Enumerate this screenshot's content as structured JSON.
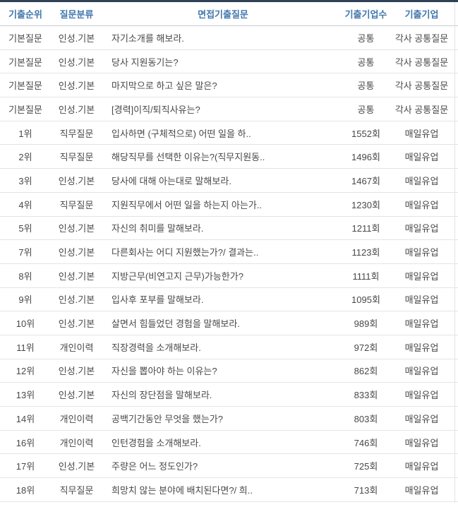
{
  "theme": {
    "c-top-border": "#2e4156",
    "c-header-text": "#4177ac",
    "c-header-border": "#c9cdd3",
    "c-row-border": "#e4e4e4",
    "c-body-text": "#484848",
    "c-bg": "#ffffff",
    "c-vline": "#e3e3e3"
  },
  "table": {
    "columns": [
      {
        "key": "rank",
        "label": "기출순위"
      },
      {
        "key": "category",
        "label": "질문분류"
      },
      {
        "key": "question",
        "label": "면접기출질문"
      },
      {
        "key": "count",
        "label": "기출기업수"
      },
      {
        "key": "company",
        "label": "기출기업"
      }
    ],
    "rows": [
      {
        "rank": "기본질문",
        "category": "인성.기본",
        "question": "자기소개를 해보라.",
        "count": "공통",
        "company": "각사 공통질문"
      },
      {
        "rank": "기본질문",
        "category": "인성.기본",
        "question": "당사 지원동기는?",
        "count": "공통",
        "company": "각사 공통질문"
      },
      {
        "rank": "기본질문",
        "category": "인성.기본",
        "question": "마지막으로 하고 싶은 말은?",
        "count": "공통",
        "company": "각사 공통질문"
      },
      {
        "rank": "기본질문",
        "category": "인성.기본",
        "question": "[경력]이직/퇴직사유는?",
        "count": "공통",
        "company": "각사 공통질문"
      },
      {
        "rank": "1위",
        "category": "직무질문",
        "question": "입사하면 (구체적으로) 어떤 일을 하..",
        "count": "1552회",
        "company": "매일유업"
      },
      {
        "rank": "2위",
        "category": "직무질문",
        "question": "해당직무를 선택한 이유는?(직무지원동..",
        "count": "1496회",
        "company": "매일유업"
      },
      {
        "rank": "3위",
        "category": "인성.기본",
        "question": "당사에 대해 아는대로 말해보라.",
        "count": "1467회",
        "company": "매일유업"
      },
      {
        "rank": "4위",
        "category": "직무질문",
        "question": "지원직무에서 어떤 일을 하는지 아는가..",
        "count": "1230회",
        "company": "매일유업"
      },
      {
        "rank": "5위",
        "category": "인성.기본",
        "question": "자신의 취미를 말해보라.",
        "count": "1211회",
        "company": "매일유업"
      },
      {
        "rank": "7위",
        "category": "인성.기본",
        "question": "다른회사는 어디 지원했는가?/ 결과는..",
        "count": "1123회",
        "company": "매일유업"
      },
      {
        "rank": "8위",
        "category": "인성.기본",
        "question": "지방근무(비연고지 근무)가능한가?",
        "count": "1111회",
        "company": "매일유업"
      },
      {
        "rank": "9위",
        "category": "인성.기본",
        "question": "입사후 포부를 말해보라.",
        "count": "1095회",
        "company": "매일유업"
      },
      {
        "rank": "10위",
        "category": "인성.기본",
        "question": "살면서 힘들었던 경험을 말해보라.",
        "count": "989회",
        "company": "매일유업"
      },
      {
        "rank": "11위",
        "category": "개인이력",
        "question": "직장경력을 소개해보라.",
        "count": "972회",
        "company": "매일유업"
      },
      {
        "rank": "12위",
        "category": "인성.기본",
        "question": "자신을 뽑아야 하는 이유는?",
        "count": "862회",
        "company": "매일유업"
      },
      {
        "rank": "13위",
        "category": "인성.기본",
        "question": "자신의 장단점을 말해보라.",
        "count": "833회",
        "company": "매일유업"
      },
      {
        "rank": "14위",
        "category": "개인이력",
        "question": "공백기간동안 무엇을 했는가?",
        "count": "803회",
        "company": "매일유업"
      },
      {
        "rank": "16위",
        "category": "개인이력",
        "question": "인턴경험을 소개해보라.",
        "count": "746회",
        "company": "매일유업"
      },
      {
        "rank": "17위",
        "category": "인성.기본",
        "question": "주량은 어느 정도인가?",
        "count": "725회",
        "company": "매일유업"
      },
      {
        "rank": "18위",
        "category": "직무질문",
        "question": "희망치 않는 분야에 배치된다면?/ 희..",
        "count": "713회",
        "company": "매일유업"
      }
    ]
  }
}
